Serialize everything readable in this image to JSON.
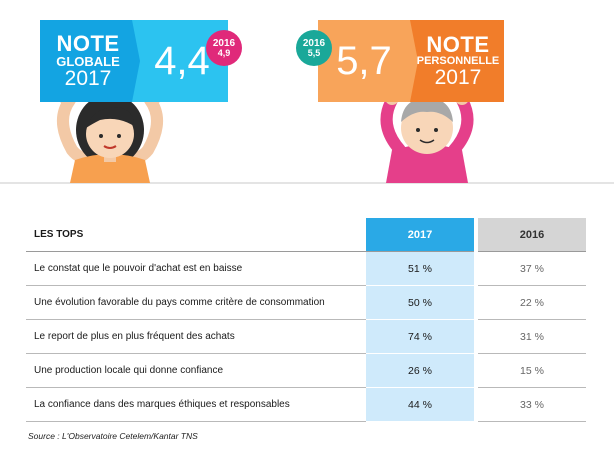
{
  "left_sign": {
    "title_line1": "NOTE",
    "title_line2": "GLOBALE",
    "year": "2017",
    "value": "4,4",
    "badge_year": "2016",
    "badge_value": "4,9"
  },
  "right_sign": {
    "title_line1": "NOTE",
    "title_line2": "PERSONNELLE",
    "year": "2017",
    "value": "5,7",
    "badge_year": "2016",
    "badge_value": "5,5"
  },
  "table": {
    "header": {
      "label": "LES TOPS",
      "col_2017": "2017",
      "col_2016": "2016"
    },
    "rows": [
      {
        "label": "Le constat que le pouvoir d'achat est en baisse",
        "v2017": "51 %",
        "v2016": "37 %"
      },
      {
        "label": "Une évolution favorable du pays comme critère de consommation",
        "v2017": "50 %",
        "v2016": "22 %"
      },
      {
        "label": "Le report de plus en plus fréquent des achats",
        "v2017": "74 %",
        "v2016": "31 %"
      },
      {
        "label": "Une production locale qui donne confiance",
        "v2017": "26 %",
        "v2016": "15 %"
      },
      {
        "label": "La confiance dans des marques éthiques et responsables",
        "v2017": "44 %",
        "v2016": "33 %"
      }
    ]
  },
  "source": "Source : L'Observatoire Cetelem/Kantar TNS",
  "colors": {
    "blue_dark": "#13a4e2",
    "blue_light": "#2cc3f0",
    "orange_dark": "#f17d2a",
    "orange_light": "#f8a45a",
    "magenta": "#e0297a",
    "teal": "#1aa899",
    "pink_shirt": "#e53f8a"
  }
}
